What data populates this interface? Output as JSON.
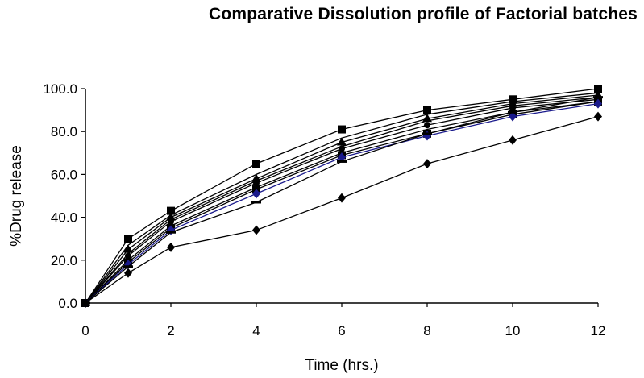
{
  "chart_data": {
    "type": "line",
    "title": "Comparative Dissolution profile of Factorial batches",
    "xlabel": "Time (hrs.)",
    "ylabel": "%Drug release",
    "x": [
      0,
      1,
      2,
      4,
      6,
      8,
      10,
      12
    ],
    "xlim": [
      0,
      12
    ],
    "ylim": [
      0,
      100
    ],
    "x_ticks": [
      "0",
      "2",
      "4",
      "6",
      "8",
      "10",
      "12"
    ],
    "y_ticks": [
      "0.0",
      "20.0",
      "40.0",
      "60.0",
      "80.0",
      "100.0"
    ],
    "grid": false,
    "legend": "none",
    "series": [
      {
        "values": [
          0,
          30,
          43,
          65,
          81,
          90,
          95,
          100
        ],
        "color": "#000000",
        "marker": "square"
      },
      {
        "values": [
          0,
          27,
          41,
          60,
          77,
          88,
          94,
          98
        ],
        "color": "#000000",
        "marker": "none"
      },
      {
        "values": [
          0,
          25,
          40,
          58,
          75,
          86,
          93,
          97
        ],
        "color": "#000000",
        "marker": "triangle"
      },
      {
        "values": [
          0,
          23,
          39,
          57,
          73,
          85,
          92,
          96
        ],
        "color": "#000000",
        "marker": "none"
      },
      {
        "values": [
          0,
          22,
          38,
          56,
          72,
          83,
          91,
          95
        ],
        "color": "#000000",
        "marker": "circle"
      },
      {
        "values": [
          0,
          20,
          36,
          54,
          70,
          81,
          89,
          94
        ],
        "color": "#000000",
        "marker": "none"
      },
      {
        "values": [
          0,
          19,
          35,
          53,
          69,
          79,
          88,
          94
        ],
        "color": "#000000",
        "marker": "square"
      },
      {
        "values": [
          0,
          18,
          34,
          51,
          68,
          78,
          87,
          93
        ],
        "color": "#1a1a8c",
        "marker": "diamond"
      },
      {
        "values": [
          0,
          17,
          33,
          47,
          66,
          79,
          89,
          96
        ],
        "color": "#000000",
        "marker": "dash"
      },
      {
        "values": [
          0,
          14,
          26,
          34,
          49,
          65,
          76,
          87
        ],
        "color": "#000000",
        "marker": "diamond"
      }
    ]
  }
}
